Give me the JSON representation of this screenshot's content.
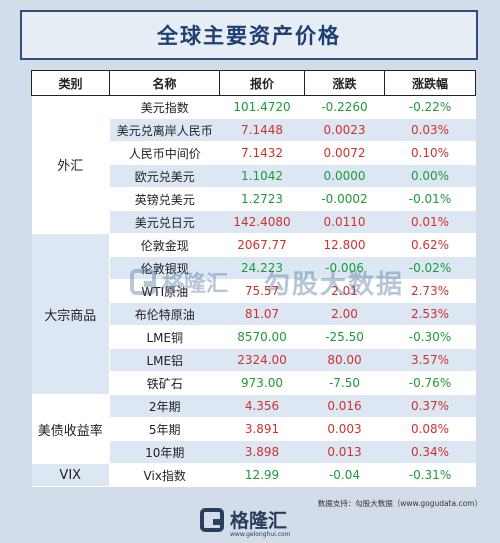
{
  "title": "全球主要资产价格",
  "headers": {
    "category": "类别",
    "name": "名称",
    "price": "报价",
    "change": "涨跌",
    "change_pct": "涨跌幅"
  },
  "groups": [
    {
      "category": "外汇",
      "rows": [
        {
          "name": "美元指数",
          "price": "101.4720",
          "change": "-0.2260",
          "pct": "-0.22%",
          "dir": "neg"
        },
        {
          "name": "美元兑离岸人民币",
          "price": "7.1448",
          "change": "0.0023",
          "pct": "0.03%",
          "dir": "pos"
        },
        {
          "name": "人民币中间价",
          "price": "7.1432",
          "change": "0.0072",
          "pct": "0.10%",
          "dir": "pos"
        },
        {
          "name": "欧元兑美元",
          "price": "1.1042",
          "change": "0.0000",
          "pct": "0.00%",
          "dir": "neu"
        },
        {
          "name": "英镑兑美元",
          "price": "1.2723",
          "change": "-0.0002",
          "pct": "-0.01%",
          "dir": "neg"
        },
        {
          "name": "美元兑日元",
          "price": "142.4080",
          "change": "0.0110",
          "pct": "0.01%",
          "dir": "pos"
        }
      ]
    },
    {
      "category": "大宗商品",
      "rows": [
        {
          "name": "伦敦金现",
          "price": "2067.77",
          "change": "12.800",
          "pct": "0.62%",
          "dir": "pos"
        },
        {
          "name": "伦敦银现",
          "price": "24.223",
          "change": "-0.006",
          "pct": "-0.02%",
          "dir": "neg"
        },
        {
          "name": "WTI原油",
          "price": "75.57",
          "change": "2.01",
          "pct": "2.73%",
          "dir": "pos"
        },
        {
          "name": "布伦特原油",
          "price": "81.07",
          "change": "2.00",
          "pct": "2.53%",
          "dir": "pos"
        },
        {
          "name": "LME铜",
          "price": "8570.00",
          "change": "-25.50",
          "pct": "-0.30%",
          "dir": "neg"
        },
        {
          "name": "LME铝",
          "price": "2324.00",
          "change": "80.00",
          "pct": "3.57%",
          "dir": "pos"
        },
        {
          "name": "铁矿石",
          "price": "973.00",
          "change": "-7.50",
          "pct": "-0.76%",
          "dir": "neg"
        }
      ]
    },
    {
      "category": "美债收益率",
      "rows": [
        {
          "name": "2年期",
          "price": "4.356",
          "change": "0.016",
          "pct": "0.37%",
          "dir": "pos"
        },
        {
          "name": "5年期",
          "price": "3.891",
          "change": "0.003",
          "pct": "0.08%",
          "dir": "pos"
        },
        {
          "name": "10年期",
          "price": "3.898",
          "change": "0.013",
          "pct": "0.34%",
          "dir": "pos"
        }
      ]
    },
    {
      "category": "VIX",
      "rows": [
        {
          "name": "Vix指数",
          "price": "12.99",
          "change": "-0.04",
          "pct": "-0.31%",
          "dir": "neg"
        }
      ]
    }
  ],
  "watermark": {
    "brand": "格隆汇",
    "brand_domain": "www.gelonghui.com",
    "partner": "勾股大数据",
    "partner_domain": "www.gogudata.com"
  },
  "source": "数据支持：勾股大数据（www.gogudata.com）",
  "footer": {
    "brand": "格隆汇",
    "domain": "www.gelonghui.com"
  },
  "colors": {
    "up": "#d0312d",
    "down": "#1d9a38",
    "title": "#1d3f73",
    "band": "#dce7f3"
  }
}
